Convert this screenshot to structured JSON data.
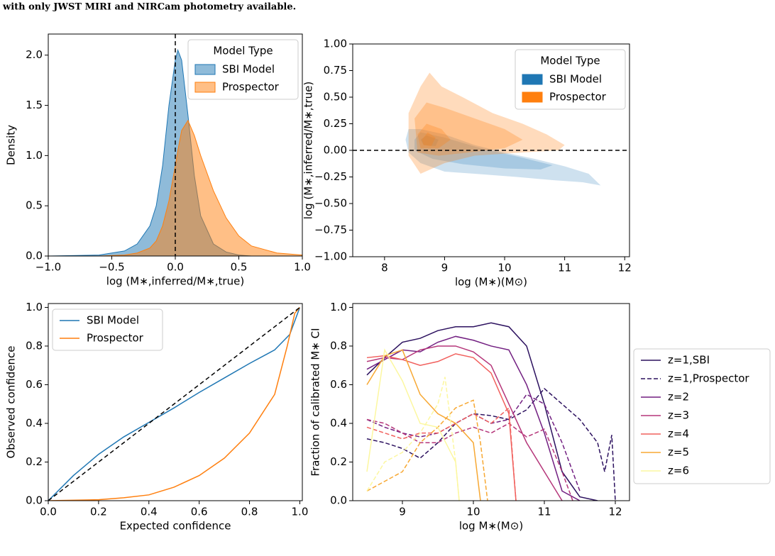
{
  "caption": "with only JWST MIRI and NIRCam photometry available.",
  "chart_data": [
    {
      "type": "density",
      "xlabel": "log (M∗,inferred/M∗,true)",
      "ylabel": "Density",
      "xlim": [
        -1,
        1
      ],
      "ylim": [
        0,
        2.21
      ],
      "xticks": [
        {
          "value": -1,
          "label": "−1.0"
        },
        {
          "value": -0.5,
          "label": "−0.5"
        },
        {
          "value": 0,
          "label": "0.0"
        },
        0.5,
        {
          "value": 1,
          "label": "1.0"
        }
      ],
      "yticks": [
        {
          "value": 0,
          "label": "0.0"
        },
        0.5,
        {
          "value": 1,
          "label": "1.0"
        },
        1.5,
        {
          "value": 2,
          "label": "2.0"
        }
      ],
      "vline": 0,
      "legend": "upper right",
      "legend_title": "Model Type",
      "x": [
        -1.0,
        -0.6,
        -0.4,
        -0.3,
        -0.2,
        -0.15,
        -0.1,
        -0.05,
        0,
        0.02,
        0.05,
        0.1,
        0.15,
        0.2,
        0.3,
        0.4,
        0.5,
        0.6,
        0.8,
        1.0
      ],
      "series": [
        {
          "name": "SBI Model",
          "color": "#1f77b4",
          "values": [
            0,
            0.01,
            0.05,
            0.12,
            0.3,
            0.5,
            0.9,
            1.5,
            1.95,
            2.05,
            1.95,
            1.4,
            0.8,
            0.4,
            0.12,
            0.04,
            0.01,
            0,
            0,
            0
          ]
        },
        {
          "name": "Prospector",
          "color": "#ff7f0e",
          "values": [
            0,
            0,
            0.01,
            0.03,
            0.08,
            0.15,
            0.3,
            0.55,
            0.9,
            1.05,
            1.25,
            1.35,
            1.2,
            1.0,
            0.65,
            0.38,
            0.2,
            0.1,
            0.03,
            0.01
          ]
        }
      ]
    },
    {
      "type": "contour",
      "xlabel": "log (M∗)(M⊙)",
      "ylabel": "log (M∗,inferred/M∗,true)",
      "xlim": [
        7.47,
        12.08
      ],
      "ylim": [
        -1,
        1
      ],
      "xticks": [
        8,
        9,
        10,
        11,
        12
      ],
      "yticks": [
        {
          "value": -1,
          "label": "−1.00"
        },
        {
          "value": -0.75,
          "label": "−0.75"
        },
        {
          "value": -0.5,
          "label": "−0.50"
        },
        {
          "value": -0.25,
          "label": "−0.25"
        },
        {
          "value": 0,
          "label": "0.00"
        },
        0.25,
        {
          "value": 0.5,
          "label": "0.50"
        },
        0.75,
        {
          "value": 1,
          "label": "1.00"
        }
      ],
      "hline": 0,
      "legend": "upper right",
      "legend_title": "Model Type",
      "series": [
        {
          "name": "SBI Model",
          "color": "#1f77b4",
          "levels": [
            {
              "x": [
                8.35,
                8.4,
                8.6,
                9,
                9.5,
                10,
                10.5,
                11,
                11.4,
                11.6,
                11.3,
                10.8,
                10.2,
                9.5,
                9,
                8.6,
                8.4
              ],
              "y": [
                0.1,
                0.2,
                0.2,
                0.15,
                0.05,
                -0.02,
                -0.08,
                -0.15,
                -0.22,
                -0.33,
                -0.3,
                -0.28,
                -0.25,
                -0.22,
                -0.2,
                -0.12,
                -0.02
              ]
            },
            {
              "x": [
                8.5,
                8.6,
                9,
                9.6,
                10.3,
                10.8,
                10.6,
                10,
                9.3,
                8.8,
                8.5
              ],
              "y": [
                0.1,
                0.17,
                0.12,
                0.02,
                -0.07,
                -0.14,
                -0.18,
                -0.17,
                -0.13,
                -0.08,
                0
              ]
            },
            {
              "x": [
                8.6,
                8.7,
                8.9,
                8.85,
                8.65
              ],
              "y": [
                0.1,
                0.14,
                0.1,
                0.04,
                0.05
              ]
            }
          ]
        },
        {
          "name": "Prospector",
          "color": "#ff7f0e",
          "levels": [
            {
              "x": [
                8.4,
                8.6,
                8.75,
                8.95,
                9.3,
                9.8,
                10.3,
                10.7,
                11,
                10.9,
                10.3,
                9.5,
                9,
                8.6,
                8.4
              ],
              "y": [
                0.35,
                0.6,
                0.73,
                0.6,
                0.5,
                0.35,
                0.25,
                0.15,
                0.05,
                0.0,
                -0.02,
                -0.05,
                -0.12,
                -0.22,
                -0.05
              ]
            },
            {
              "x": [
                8.5,
                8.7,
                9,
                9.5,
                10,
                10.3,
                10,
                9.4,
                8.9,
                8.55
              ],
              "y": [
                0.3,
                0.45,
                0.4,
                0.3,
                0.2,
                0.1,
                0.02,
                -0.02,
                -0.05,
                -0.02
              ]
            },
            {
              "x": [
                8.55,
                8.7,
                8.95,
                9.1,
                8.9,
                8.6
              ],
              "y": [
                0.15,
                0.25,
                0.2,
                0.1,
                0.02,
                0.02
              ]
            },
            {
              "x": [
                8.62,
                8.72,
                8.85,
                8.78,
                8.65
              ],
              "y": [
                0.1,
                0.17,
                0.12,
                0.04,
                0.05
              ]
            }
          ]
        }
      ]
    },
    {
      "type": "line",
      "xlabel": "Expected confidence",
      "ylabel": "Observed confidence",
      "xlim": [
        0,
        1.01
      ],
      "ylim": [
        0,
        1.02
      ],
      "xticks": [
        {
          "value": 0,
          "label": "0.0"
        },
        0.2,
        0.4,
        0.6,
        0.8,
        {
          "value": 1,
          "label": "1.0"
        }
      ],
      "yticks": [
        {
          "value": 0,
          "label": "0.0"
        },
        0.2,
        0.4,
        0.6,
        0.8,
        {
          "value": 1,
          "label": "1.0"
        }
      ],
      "refline": {
        "x": [
          0,
          1
        ],
        "y": [
          0,
          1
        ]
      },
      "legend": "upper left",
      "series": [
        {
          "name": "SBI Model",
          "color": "#1f77b4",
          "x": [
            0,
            0.1,
            0.2,
            0.3,
            0.4,
            0.5,
            0.6,
            0.7,
            0.8,
            0.9,
            0.96,
            1.0
          ],
          "values": [
            0,
            0.13,
            0.24,
            0.33,
            0.405,
            0.48,
            0.56,
            0.635,
            0.71,
            0.78,
            0.86,
            1.0
          ]
        },
        {
          "name": "Prospector",
          "color": "#ff7f0e",
          "x": [
            0,
            0.2,
            0.3,
            0.4,
            0.5,
            0.6,
            0.7,
            0.8,
            0.9,
            0.95,
            0.98,
            1.0
          ],
          "values": [
            0,
            0.005,
            0.015,
            0.03,
            0.07,
            0.13,
            0.22,
            0.35,
            0.55,
            0.8,
            0.97,
            1.0
          ]
        }
      ]
    },
    {
      "type": "line",
      "xlabel": "log M∗(M⊙)",
      "ylabel": "Fraction of calibrated M∗ CI",
      "xlim": [
        8.3,
        12.2
      ],
      "ylim": [
        0,
        1.02
      ],
      "xticks": [
        9,
        10,
        11,
        12
      ],
      "yticks": [
        {
          "value": 0,
          "label": "0.0"
        },
        0.2,
        0.4,
        0.6,
        0.8,
        {
          "value": 1,
          "label": "1.0"
        }
      ],
      "legend": "outside right",
      "series": [
        {
          "name": "z=1,SBI",
          "color": "#2c115f",
          "x": [
            8.5,
            8.75,
            9,
            9.25,
            9.5,
            9.75,
            10,
            10.25,
            10.5,
            10.75,
            11,
            11.25,
            11.5,
            11.75
          ],
          "values": [
            0.65,
            0.74,
            0.82,
            0.84,
            0.88,
            0.9,
            0.9,
            0.92,
            0.9,
            0.8,
            0.5,
            0.15,
            0.02,
            0
          ]
        },
        {
          "name": "z=1,Prospector",
          "color": "#2c115f",
          "dash": true,
          "x": [
            8.5,
            8.75,
            9,
            9.25,
            9.5,
            9.75,
            10,
            10.25,
            10.5,
            10.75,
            11,
            11.25,
            11.5,
            11.75,
            11.85,
            11.95,
            12
          ],
          "values": [
            0.32,
            0.3,
            0.27,
            0.22,
            0.3,
            0.4,
            0.45,
            0.44,
            0.42,
            0.47,
            0.58,
            0.5,
            0.42,
            0.3,
            0.15,
            0.34,
            0
          ]
        },
        {
          "name": "z=2",
          "color": "#721f81",
          "x": [
            8.5,
            8.75,
            9,
            9.25,
            9.5,
            9.75,
            10,
            10.25,
            10.5,
            10.75,
            11,
            11.25,
            11.5
          ],
          "values": [
            0.68,
            0.73,
            0.78,
            0.77,
            0.82,
            0.85,
            0.83,
            0.8,
            0.78,
            0.6,
            0.35,
            0.05,
            0
          ]
        },
        {
          "color": "#721f81",
          "dash": true,
          "x": [
            8.5,
            8.75,
            9,
            9.25,
            9.5,
            9.75,
            10,
            10.25,
            10.5,
            10.75,
            11,
            11.25,
            11.5
          ],
          "values": [
            0.42,
            0.38,
            0.35,
            0.33,
            0.35,
            0.4,
            0.45,
            0.4,
            0.42,
            0.55,
            0.5,
            0.3,
            0.05
          ]
        },
        {
          "name": "z=3",
          "color": "#b5367a",
          "x": [
            8.5,
            8.75,
            9,
            9.25,
            9.5,
            9.75,
            10,
            10.25,
            10.5,
            10.75,
            11,
            11.25
          ],
          "values": [
            0.72,
            0.74,
            0.73,
            0.78,
            0.8,
            0.8,
            0.77,
            0.7,
            0.5,
            0.3,
            0.15,
            0
          ]
        },
        {
          "color": "#b5367a",
          "dash": true,
          "x": [
            8.5,
            8.75,
            9,
            9.25,
            9.5,
            9.75,
            10,
            10.25,
            10.5,
            10.75,
            11,
            11.25,
            11.4
          ],
          "values": [
            0.42,
            0.4,
            0.35,
            0.3,
            0.3,
            0.35,
            0.38,
            0.35,
            0.4,
            0.33,
            0.37,
            0.15,
            0
          ]
        },
        {
          "name": "z=4",
          "color": "#f1605d",
          "x": [
            8.5,
            8.75,
            9,
            9.25,
            9.5,
            9.75,
            10,
            10.25,
            10.5,
            10.6
          ],
          "values": [
            0.74,
            0.75,
            0.73,
            0.7,
            0.72,
            0.76,
            0.74,
            0.66,
            0.45,
            0
          ]
        },
        {
          "color": "#f1605d",
          "dash": true,
          "x": [
            8.5,
            8.75,
            9,
            9.25,
            9.5,
            9.75,
            10,
            10.25,
            10.5,
            10.6
          ],
          "values": [
            0.38,
            0.35,
            0.32,
            0.35,
            0.35,
            0.4,
            0.45,
            0.4,
            0.48,
            0
          ]
        },
        {
          "name": "z=5",
          "color": "#f7a833",
          "x": [
            8.5,
            8.75,
            9,
            9.25,
            9.5,
            9.75,
            10,
            10.1
          ],
          "values": [
            0.6,
            0.75,
            0.78,
            0.55,
            0.45,
            0.4,
            0.3,
            0
          ]
        },
        {
          "color": "#f7a833",
          "dash": true,
          "x": [
            8.5,
            8.75,
            9,
            9.25,
            9.5,
            9.75,
            10,
            10.1,
            10.2
          ],
          "values": [
            0.05,
            0.1,
            0.15,
            0.3,
            0.38,
            0.48,
            0.52,
            0.3,
            0
          ]
        },
        {
          "name": "z=6",
          "color": "#fcf7a0",
          "x": [
            8.5,
            8.75,
            9,
            9.25,
            9.5,
            9.75,
            9.8
          ],
          "values": [
            0.15,
            0.78,
            0.62,
            0.4,
            0.38,
            0.2,
            0
          ]
        },
        {
          "color": "#fcf7a0",
          "dash": true,
          "x": [
            8.5,
            8.75,
            9,
            9.25,
            9.5,
            9.6,
            9.75,
            9.8
          ],
          "values": [
            0.05,
            0.2,
            0.25,
            0.35,
            0.5,
            0.64,
            0.2,
            0
          ]
        }
      ]
    }
  ]
}
